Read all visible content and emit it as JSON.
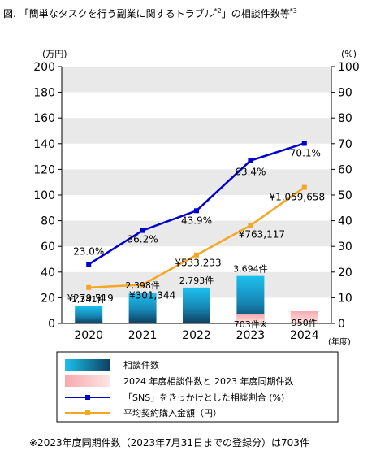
{
  "title": {
    "prefix": "図.",
    "text": "「簡単なタスクを行う副業に関するトラブル",
    "sup1": "*2",
    "suffix": "」の相談件数等",
    "sup2": "*3"
  },
  "footnote": "※2023年度同期件数（2023年7月31日までの登録分）は703件",
  "colors": {
    "bar_main": "#1aa7d8",
    "bar_main_dark": "#0e4a6a",
    "bar_pink": "#f7a9ad",
    "bar_pink_light": "#fde4e5",
    "sns_line": "#0000cc",
    "price_line": "#f5a623",
    "grid_band": "#e9e9e9"
  },
  "chart_data": {
    "type": "bar",
    "categories": [
      "2020",
      "2021",
      "2022",
      "2023",
      "2024"
    ],
    "y_left_unit": "(万円)",
    "y_right_unit": "(%)",
    "x_unit": "(年度)",
    "ylim_left": [
      0,
      200
    ],
    "ylim_right": [
      0,
      100
    ],
    "y_left_ticks": [
      "0",
      "20",
      "40",
      "60",
      "80",
      "100",
      "120",
      "140",
      "160",
      "180",
      "200"
    ],
    "y_right_ticks": [
      "0",
      "10",
      "20",
      "30",
      "40",
      "50",
      "60",
      "70",
      "80",
      "90",
      "100"
    ],
    "series": [
      {
        "name": "相談件数",
        "kind": "bar",
        "axis": "count_scaled",
        "values": [
          1341,
          2398,
          2793,
          3694,
          null
        ],
        "labels": [
          "1,341件",
          "2,398件",
          "2,793件",
          "3,694件",
          ""
        ]
      },
      {
        "name": "2024 年度相談件数と 2023 年度同期件数",
        "kind": "bar",
        "axis": "count_scaled",
        "values": [
          null,
          null,
          null,
          703,
          950
        ],
        "labels": [
          "",
          "",
          "",
          "703件※",
          "950件"
        ]
      },
      {
        "name": "「SNS」をきっかけとした相談割合 (%)",
        "kind": "line",
        "axis": "right",
        "values": [
          23.0,
          36.2,
          43.9,
          63.4,
          70.1
        ],
        "labels": [
          "23.0%",
          "36.2%",
          "43.9%",
          "63.4%",
          "70.1%"
        ]
      },
      {
        "name": "平均契約購入金額（円）",
        "kind": "line",
        "axis": "left",
        "values": [
          27.9519,
          30.1344,
          53.3233,
          76.3117,
          105.9658
        ],
        "labels": [
          "¥279,519",
          "¥301,344",
          "¥533,233",
          "¥763,117",
          "¥1,059,658"
        ]
      }
    ],
    "legend_position": "bottom",
    "grid": "alternating bands"
  }
}
